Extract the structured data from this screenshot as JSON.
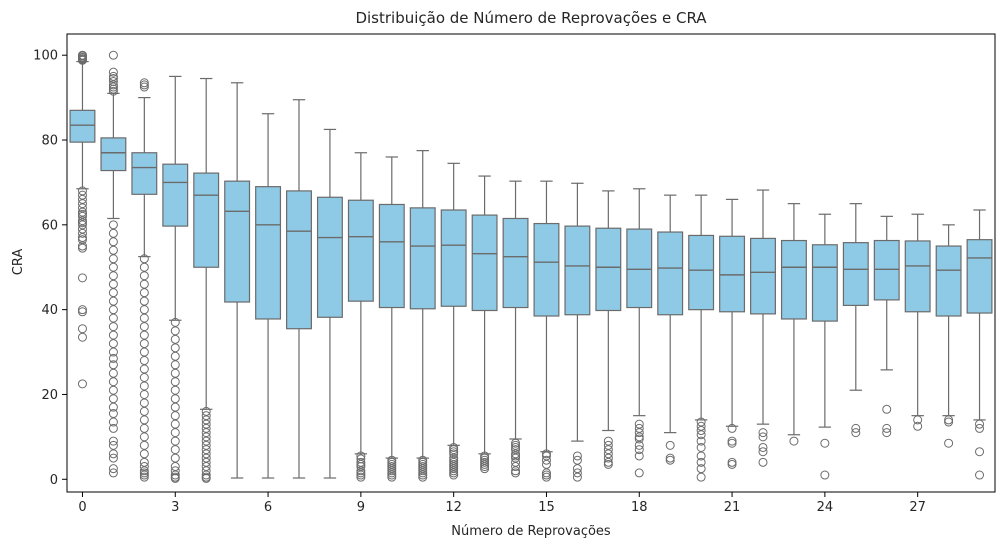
{
  "chart_data": {
    "type": "boxplot",
    "title": "Distribuição de Número de Reprovações e CRA",
    "xlabel": "Número de Reprovações",
    "ylabel": "CRA",
    "ylim": [
      -3,
      105
    ],
    "yticks": [
      0,
      20,
      40,
      60,
      80,
      100
    ],
    "xticks": [
      0,
      3,
      6,
      9,
      12,
      15,
      18,
      21,
      24,
      27
    ],
    "grid": false,
    "colors": {
      "box_fill": "#8ecae6",
      "box_edge": "#6b6b6b",
      "outlier_edge": "#6b6b6b"
    },
    "boxes": [
      {
        "x": 0,
        "q1": 79.5,
        "median": 83.5,
        "q3": 87,
        "whisker_low": 68.5,
        "whisker_high": 98.5,
        "outliers": [
          100,
          99.8,
          99.5,
          99.2,
          99,
          98.8,
          68,
          67,
          66,
          65,
          64,
          63,
          62.5,
          62,
          61,
          60.5,
          60,
          59,
          58,
          57,
          56.5,
          55,
          54.5,
          47.5,
          40,
          39.5,
          35.5,
          33.5,
          22.5
        ]
      },
      {
        "x": 1,
        "q1": 72.8,
        "median": 77,
        "q3": 80.5,
        "whisker_low": 61.5,
        "whisker_high": 91,
        "outliers": [
          100,
          96,
          95,
          94.5,
          93.8,
          93,
          92.5,
          92,
          91.5,
          60,
          58,
          56,
          54,
          52,
          50,
          48,
          46,
          44,
          42,
          40,
          38,
          36,
          34,
          32,
          30,
          28.5,
          27,
          25,
          23,
          21,
          19,
          17,
          15.5,
          13.5,
          12,
          9,
          8,
          6,
          5,
          2.5,
          1.5
        ]
      },
      {
        "x": 2,
        "q1": 67.2,
        "median": 73.5,
        "q3": 77,
        "whisker_low": 52.5,
        "whisker_high": 90,
        "outliers": [
          93.5,
          93,
          92.5,
          52,
          50,
          48,
          46,
          44,
          42,
          40,
          38,
          36,
          34,
          32,
          30,
          28,
          26,
          24,
          22,
          20,
          18,
          16,
          14,
          12,
          10,
          8,
          6,
          4,
          3,
          2,
          1.5,
          1,
          0.5
        ]
      },
      {
        "x": 3,
        "q1": 59.7,
        "median": 70,
        "q3": 74.3,
        "whisker_low": 37.5,
        "whisker_high": 95,
        "outliers": [
          37,
          35,
          33,
          31,
          29,
          27,
          25,
          23,
          21,
          19,
          17,
          15,
          13,
          11,
          9,
          7,
          5,
          3,
          2,
          1,
          0.5,
          0.2
        ]
      },
      {
        "x": 4,
        "q1": 50,
        "median": 67,
        "q3": 72.2,
        "whisker_low": 16.5,
        "whisker_high": 94.5,
        "outliers": [
          16,
          15,
          14,
          13,
          12,
          11,
          10,
          9,
          8,
          7,
          6,
          5,
          4,
          3,
          2,
          1,
          0.5,
          0.2
        ]
      },
      {
        "x": 5,
        "q1": 41.8,
        "median": 63.2,
        "q3": 70.3,
        "whisker_low": 0.3,
        "whisker_high": 93.5,
        "outliers": []
      },
      {
        "x": 6,
        "q1": 37.8,
        "median": 60,
        "q3": 69,
        "whisker_low": 0.3,
        "whisker_high": 86.2,
        "outliers": []
      },
      {
        "x": 7,
        "q1": 35.5,
        "median": 58.5,
        "q3": 68,
        "whisker_low": 0.3,
        "whisker_high": 89.5,
        "outliers": []
      },
      {
        "x": 8,
        "q1": 38.2,
        "median": 57,
        "q3": 66.5,
        "whisker_low": 0.3,
        "whisker_high": 82.5,
        "outliers": []
      },
      {
        "x": 9,
        "q1": 42,
        "median": 57.2,
        "q3": 65.8,
        "whisker_low": 6,
        "whisker_high": 77,
        "outliers": [
          5.5,
          4.8,
          4,
          3.5,
          3,
          2,
          1.5,
          1,
          0.5
        ]
      },
      {
        "x": 10,
        "q1": 40.5,
        "median": 56,
        "q3": 64.8,
        "whisker_low": 5,
        "whisker_high": 76,
        "outliers": [
          4.5,
          4,
          3.5,
          3,
          2.5,
          2,
          1.5,
          1,
          0.5
        ]
      },
      {
        "x": 11,
        "q1": 40.2,
        "median": 55,
        "q3": 64,
        "whisker_low": 5,
        "whisker_high": 77.5,
        "outliers": [
          4.5,
          4,
          3.5,
          3,
          2.5,
          2,
          1.5,
          1,
          0.5
        ]
      },
      {
        "x": 12,
        "q1": 40.8,
        "median": 55.2,
        "q3": 63.5,
        "whisker_low": 8,
        "whisker_high": 74.5,
        "outliers": [
          7.5,
          7,
          6.5,
          6,
          5,
          4.5,
          4,
          3.5,
          3,
          2.5,
          2,
          1.5,
          1
        ]
      },
      {
        "x": 13,
        "q1": 39.8,
        "median": 53.2,
        "q3": 62.3,
        "whisker_low": 6,
        "whisker_high": 71.5,
        "outliers": [
          5.5,
          5,
          4.5,
          4,
          3.5,
          3,
          2.5
        ]
      },
      {
        "x": 14,
        "q1": 40.5,
        "median": 52.5,
        "q3": 61.5,
        "whisker_low": 9.5,
        "whisker_high": 70.3,
        "outliers": [
          8.5,
          8,
          7.5,
          7,
          6,
          5.5,
          5,
          4,
          3,
          2,
          1.5
        ]
      },
      {
        "x": 15,
        "q1": 38.5,
        "median": 51.2,
        "q3": 60.3,
        "whisker_low": 6.5,
        "whisker_high": 70.3,
        "outliers": [
          6,
          5.5,
          4.5,
          3.5,
          1.5,
          1,
          0.5
        ]
      },
      {
        "x": 16,
        "q1": 38.8,
        "median": 50.3,
        "q3": 59.7,
        "whisker_low": 9,
        "whisker_high": 69.8,
        "outliers": [
          5.5,
          4.5,
          2.5,
          1.5,
          0.5
        ]
      },
      {
        "x": 17,
        "q1": 39.8,
        "median": 50,
        "q3": 59.2,
        "whisker_low": 11.5,
        "whisker_high": 68,
        "outliers": [
          9,
          8,
          7,
          6,
          5,
          4,
          3.5
        ]
      },
      {
        "x": 18,
        "q1": 40.5,
        "median": 49.5,
        "q3": 59,
        "whisker_low": 15,
        "whisker_high": 68.5,
        "outliers": [
          13,
          12,
          11,
          10,
          9.5,
          8,
          7,
          5.5,
          1.5
        ]
      },
      {
        "x": 19,
        "q1": 38.8,
        "median": 49.8,
        "q3": 58.3,
        "whisker_low": 11,
        "whisker_high": 67,
        "outliers": [
          8,
          5,
          4.5
        ]
      },
      {
        "x": 20,
        "q1": 40,
        "median": 49.3,
        "q3": 57.5,
        "whisker_low": 14,
        "whisker_high": 67,
        "outliers": [
          13.5,
          12.5,
          11.5,
          10.5,
          9,
          7.5,
          5.5,
          4,
          2.5,
          0.5
        ]
      },
      {
        "x": 21,
        "q1": 39.5,
        "median": 48.2,
        "q3": 57.3,
        "whisker_low": 12.5,
        "whisker_high": 66,
        "outliers": [
          12,
          9,
          8.5,
          4,
          3.5
        ]
      },
      {
        "x": 22,
        "q1": 39,
        "median": 48.8,
        "q3": 56.8,
        "whisker_low": 13,
        "whisker_high": 68.2,
        "outliers": [
          11,
          10,
          7.5,
          6.5,
          4
        ]
      },
      {
        "x": 23,
        "q1": 37.8,
        "median": 50,
        "q3": 56.3,
        "whisker_low": 10.5,
        "whisker_high": 65,
        "outliers": [
          9
        ]
      },
      {
        "x": 24,
        "q1": 37.3,
        "median": 50,
        "q3": 55.3,
        "whisker_low": 12.3,
        "whisker_high": 62.5,
        "outliers": [
          8.5,
          1
        ]
      },
      {
        "x": 25,
        "q1": 41,
        "median": 49.5,
        "q3": 55.8,
        "whisker_low": 21,
        "whisker_high": 65,
        "outliers": [
          12,
          11
        ]
      },
      {
        "x": 26,
        "q1": 42.3,
        "median": 49.5,
        "q3": 56.3,
        "whisker_low": 25.8,
        "whisker_high": 62,
        "outliers": [
          16.5,
          12,
          11
        ]
      },
      {
        "x": 27,
        "q1": 39.5,
        "median": 50.3,
        "q3": 56.2,
        "whisker_low": 15,
        "whisker_high": 62.5,
        "outliers": [
          14,
          12.5
        ]
      },
      {
        "x": 28,
        "q1": 38.5,
        "median": 49.3,
        "q3": 55,
        "whisker_low": 15,
        "whisker_high": 60,
        "outliers": [
          14,
          13.5,
          8.5
        ]
      },
      {
        "x": 29,
        "q1": 39.2,
        "median": 52.2,
        "q3": 56.5,
        "whisker_low": 14,
        "whisker_high": 63.5,
        "outliers": [
          13,
          12,
          6.5,
          1
        ]
      }
    ]
  }
}
